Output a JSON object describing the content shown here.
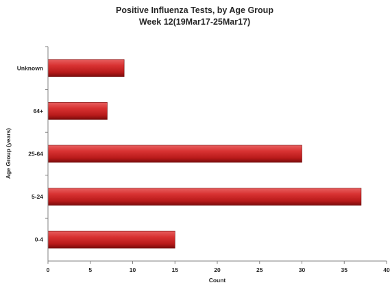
{
  "chart_data": {
    "type": "bar",
    "orientation": "horizontal",
    "title": [
      "Positive Influenza Tests, by Age Group",
      "Week 12(19Mar17-25Mar17)"
    ],
    "xlabel": "Count",
    "ylabel": "Age Group (years)",
    "categories": [
      "Unknown",
      "64+",
      "25-64",
      "5-24",
      "0-4"
    ],
    "values": [
      9,
      7,
      30,
      37,
      15
    ],
    "xlim": [
      0,
      40
    ],
    "xticks": [
      0,
      5,
      10,
      15,
      20,
      25,
      30,
      35,
      40
    ],
    "grid": false,
    "legend": "none",
    "colors": {
      "bar_light": "#e04a4a",
      "bar_mid": "#c02020",
      "bar_dark": "#7a0c0c",
      "axis": "#808080",
      "text": "#262626"
    }
  }
}
